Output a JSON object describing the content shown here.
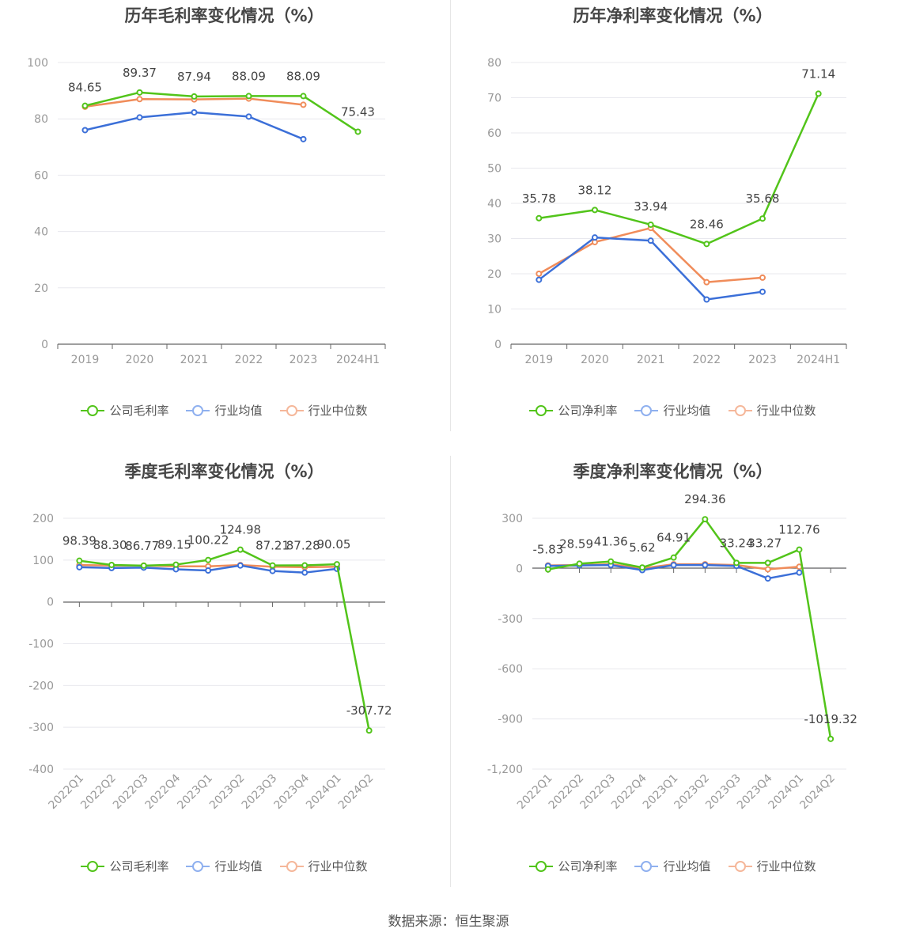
{
  "colors": {
    "company": "#52c41a",
    "avg": "#3b6fd8",
    "median": "#f08c5a",
    "grid": "#e8e8ee",
    "axis": "#666666"
  },
  "legend": [
    [
      "公司毛利率",
      "行业均值",
      "行业中位数"
    ],
    [
      "公司净利率",
      "行业均值",
      "行业中位数"
    ],
    [
      "公司毛利率",
      "行业均值",
      "行业中位数"
    ],
    [
      "公司净利率",
      "行业均值",
      "行业中位数"
    ]
  ],
  "source": "数据来源：恒生聚源",
  "chart_data": [
    {
      "type": "line",
      "title": "历年毛利率变化情况（%）",
      "categories": [
        "2019",
        "2020",
        "2021",
        "2022",
        "2023",
        "2024H1"
      ],
      "ylim": [
        0,
        100
      ],
      "yticks": [
        0,
        20,
        40,
        60,
        80,
        100
      ],
      "ytick_labels": [
        "0",
        "20",
        "40",
        "60",
        "80",
        "100"
      ],
      "series": [
        {
          "name": "公司毛利率",
          "values": [
            84.65,
            89.37,
            87.94,
            88.09,
            88.09,
            75.43
          ],
          "labels": [
            "84.65",
            "89.37",
            "87.94",
            "88.09",
            "88.09",
            "75.43"
          ]
        },
        {
          "name": "行业均值",
          "values": [
            76.0,
            80.5,
            82.3,
            80.8,
            72.8,
            null
          ]
        },
        {
          "name": "行业中位数",
          "values": [
            84.3,
            87.0,
            86.9,
            87.2,
            85.0,
            null
          ]
        }
      ]
    },
    {
      "type": "line",
      "title": "历年净利率变化情况（%）",
      "categories": [
        "2019",
        "2020",
        "2021",
        "2022",
        "2023",
        "2024H1"
      ],
      "ylim": [
        0,
        80
      ],
      "yticks": [
        0,
        10,
        20,
        30,
        40,
        50,
        60,
        70,
        80
      ],
      "ytick_labels": [
        "0",
        "10",
        "20",
        "30",
        "40",
        "50",
        "60",
        "70",
        "80"
      ],
      "series": [
        {
          "name": "公司净利率",
          "values": [
            35.78,
            38.12,
            33.94,
            28.46,
            35.68,
            71.14
          ],
          "labels": [
            "35.78",
            "38.12",
            "33.94",
            "28.46",
            "35.68",
            "71.14"
          ]
        },
        {
          "name": "行业均值",
          "values": [
            18.3,
            30.3,
            29.4,
            12.7,
            14.9,
            null
          ]
        },
        {
          "name": "行业中位数",
          "values": [
            20.0,
            29.0,
            33.0,
            17.6,
            18.9,
            null
          ]
        }
      ]
    },
    {
      "type": "line",
      "title": "季度毛利率变化情况（%）",
      "categories": [
        "2022Q1",
        "2022Q2",
        "2022Q3",
        "2022Q4",
        "2023Q1",
        "2023Q2",
        "2023Q3",
        "2023Q4",
        "2024Q1",
        "2024Q2"
      ],
      "ylim": [
        -400,
        200
      ],
      "yticks": [
        -400,
        -300,
        -200,
        -100,
        0,
        100,
        200
      ],
      "ytick_labels": [
        "-400",
        "-300",
        "-200",
        "-100",
        "0",
        "100",
        "200"
      ],
      "series": [
        {
          "name": "公司毛利率",
          "values": [
            98.39,
            88.3,
            86.77,
            89.15,
            100.22,
            124.98,
            87.21,
            87.28,
            90.05,
            -307.72
          ],
          "labels": [
            "98.39",
            "88.30",
            "86.77",
            "89.15",
            "100.22",
            "124.98",
            "87.21",
            "87.28",
            "90.05",
            "-307.72"
          ]
        },
        {
          "name": "行业均值",
          "values": [
            83,
            81,
            82,
            78,
            75,
            87,
            74,
            70,
            79,
            null
          ]
        },
        {
          "name": "行业中位数",
          "values": [
            88,
            87,
            87,
            85,
            85,
            88,
            84,
            83,
            84,
            null
          ]
        }
      ]
    },
    {
      "type": "line",
      "title": "季度净利率变化情况（%）",
      "categories": [
        "2022Q1",
        "2022Q2",
        "2022Q3",
        "2022Q4",
        "2023Q1",
        "2023Q2",
        "2023Q3",
        "2023Q4",
        "2024Q1",
        "2024Q2"
      ],
      "ylim": [
        -1200,
        300
      ],
      "yticks": [
        -1200,
        -900,
        -600,
        -300,
        0,
        300
      ],
      "ytick_labels": [
        "-1,200",
        "-900",
        "-600",
        "-300",
        "0",
        "300"
      ],
      "series": [
        {
          "name": "公司净利率",
          "values": [
            -5.83,
            28.59,
            41.36,
            5.62,
            64.91,
            294.36,
            33.24,
            33.27,
            112.76,
            -1019.32
          ],
          "labels": [
            "-5.83",
            "28.59",
            "41.36",
            "5.62",
            "64.91",
            "294.36",
            "33.24",
            "33.27",
            "112.76",
            "-1019.32"
          ]
        },
        {
          "name": "行业均值",
          "values": [
            15,
            18,
            20,
            -10,
            20,
            20,
            15,
            -60,
            -25,
            null
          ]
        },
        {
          "name": "行业中位数",
          "values": [
            18,
            20,
            25,
            0,
            25,
            25,
            20,
            -5,
            10,
            null
          ]
        }
      ]
    }
  ]
}
